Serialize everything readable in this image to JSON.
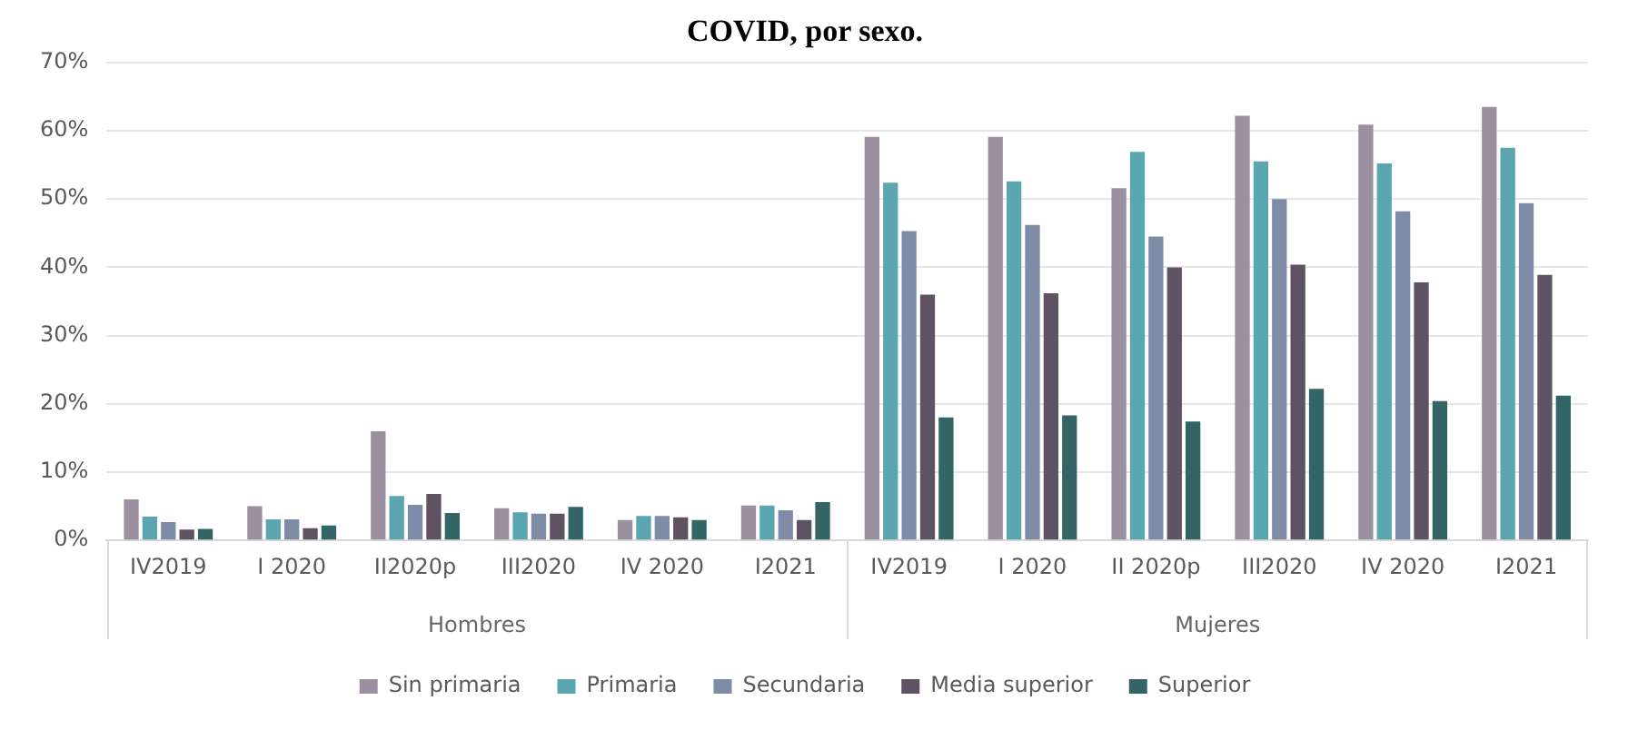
{
  "chart_data": {
    "type": "bar",
    "title": "COVID, por sexo.",
    "categories": [
      "IV2019",
      "I 2020",
      "II2020p",
      "III2020",
      "IV 2020",
      "I2021",
      "IV2019",
      "I 2020",
      "II 2020p",
      "III2020",
      "IV 2020",
      "I2021"
    ],
    "series": [
      {
        "name": "Sin primaria",
        "color": "#9c8fa0",
        "values": [
          6.0,
          5.0,
          16.0,
          4.7,
          3.0,
          5.1,
          59.1,
          59.1,
          51.6,
          62.2,
          60.9,
          63.5
        ]
      },
      {
        "name": "Primaria",
        "color": "#5ba5b0",
        "values": [
          3.5,
          3.1,
          6.5,
          4.1,
          3.6,
          5.1,
          52.4,
          52.6,
          56.9,
          55.5,
          55.2,
          57.5
        ]
      },
      {
        "name": "Secundaria",
        "color": "#7f8ca8",
        "values": [
          2.7,
          3.1,
          5.2,
          3.9,
          3.6,
          4.4,
          45.3,
          46.2,
          44.5,
          50.0,
          48.2,
          49.4
        ]
      },
      {
        "name": "Media superior",
        "color": "#5e5263",
        "values": [
          1.6,
          1.8,
          6.8,
          3.9,
          3.4,
          3.0,
          36.0,
          36.2,
          40.0,
          40.4,
          37.8,
          38.9
        ]
      },
      {
        "name": "Superior",
        "color": "#336466",
        "values": [
          1.7,
          2.2,
          4.0,
          4.9,
          3.0,
          5.6,
          18.0,
          18.3,
          17.4,
          22.2,
          20.4,
          21.2
        ]
      }
    ],
    "ylim": [
      0,
      70
    ],
    "yticks": [
      {
        "value": 0,
        "label": "0%"
      },
      {
        "value": 10,
        "label": "10%"
      },
      {
        "value": 20,
        "label": "20%"
      },
      {
        "value": 30,
        "label": "30%"
      },
      {
        "value": 40,
        "label": "40%"
      },
      {
        "value": 50,
        "label": "50%"
      },
      {
        "value": 60,
        "label": "60%"
      },
      {
        "value": 70,
        "label": "70%"
      }
    ],
    "grid": "y",
    "legend": "bottom",
    "annotations": [
      "Hombres",
      "Mujeres"
    ]
  }
}
